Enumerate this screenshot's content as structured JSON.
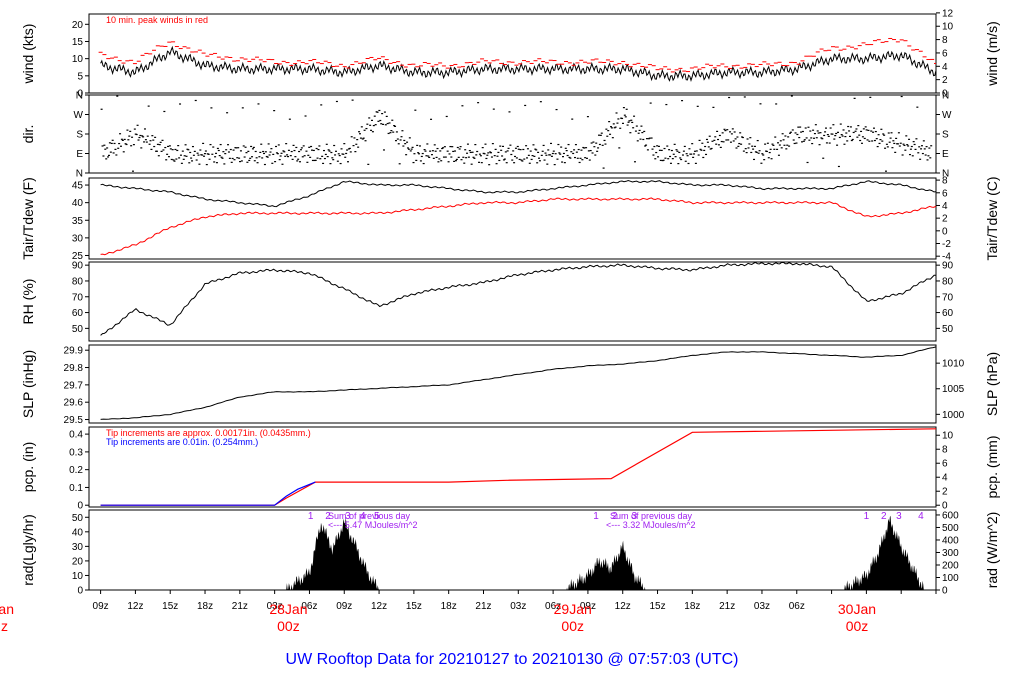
{
  "footer": {
    "title": "UW Rooftop Data for 20210127  to  20210130 @ 07:57:03  (UTC)"
  },
  "colors": {
    "wind": "#000000",
    "peak": "#ff0000",
    "tair": "#000000",
    "tdew": "#ff0000",
    "precip_fine": "#ff0000",
    "precip_coarse": "#0000ff",
    "annotation": "#a020f0",
    "date_label": "#ff0000",
    "footer": "#0000ff"
  },
  "chart_data": [
    {
      "type": "line",
      "name": "wind",
      "ylabel": "wind (kts)",
      "ylabel_right": "wind (m/s)",
      "ylim": [
        0,
        23
      ],
      "yticks": [
        0,
        5,
        10,
        15,
        20
      ],
      "right_ticks": [
        0,
        2,
        4,
        6,
        8,
        10,
        12
      ],
      "annotation": "10 min. peak winds in red",
      "x_hours": [
        0,
        3,
        6,
        9,
        12,
        15,
        18,
        21,
        24,
        27,
        30,
        33,
        36,
        39,
        42,
        45,
        48,
        51,
        54,
        57,
        60,
        63,
        66,
        69,
        72
      ],
      "series": [
        {
          "values": [
            8,
            6,
            12,
            8,
            7,
            7,
            7,
            6,
            8,
            6,
            6,
            7,
            7,
            7,
            7,
            7,
            5,
            5,
            6,
            6,
            7,
            10,
            10,
            11,
            6
          ]
        },
        {
          "values": [
            11,
            9,
            15,
            11,
            10,
            9,
            9,
            8,
            10,
            8,
            8,
            9,
            9,
            9,
            9,
            9,
            7,
            7,
            8,
            8,
            9,
            13,
            14,
            16,
            8
          ]
        }
      ]
    },
    {
      "type": "scatter",
      "name": "dir",
      "ylabel": "dir.",
      "yticks": [
        "N",
        "E",
        "S",
        "W",
        "N"
      ],
      "x_hours": [
        0,
        3,
        6,
        9,
        12,
        15,
        18,
        21,
        24,
        27,
        30,
        33,
        36,
        39,
        42,
        45,
        48,
        51,
        54,
        57,
        60,
        63,
        66,
        69,
        72
      ],
      "values": [
        "E",
        "S",
        "E",
        "E",
        "E",
        "E",
        "E",
        "E",
        "W",
        "E",
        "E",
        "E",
        "E",
        "E",
        "E",
        "W",
        "E",
        "E",
        "S",
        "E",
        "S",
        "S",
        "S",
        "SE",
        "E"
      ]
    },
    {
      "type": "line",
      "name": "temperature",
      "ylabel": "Tair/Tdew (F)",
      "ylabel_right": "Tair/Tdew (C)",
      "ylim": [
        24,
        47
      ],
      "yticks": [
        25,
        30,
        35,
        40,
        45
      ],
      "right_ticks": [
        -4,
        -2,
        0,
        2,
        4,
        6,
        8
      ],
      "x_hours": [
        0,
        3,
        6,
        9,
        12,
        15,
        18,
        21,
        24,
        27,
        30,
        33,
        36,
        39,
        42,
        45,
        48,
        51,
        54,
        57,
        60,
        63,
        66,
        69,
        72
      ],
      "series": [
        {
          "values": [
            45,
            44,
            43,
            41,
            40,
            39,
            42,
            46,
            45,
            45,
            44,
            43,
            43,
            44,
            45,
            46,
            46,
            45,
            45,
            44,
            44,
            44,
            46,
            45,
            43
          ]
        },
        {
          "values": [
            25,
            28,
            33,
            36,
            37,
            37,
            37,
            37,
            37,
            38,
            39,
            40,
            40,
            41,
            41,
            41,
            41,
            40,
            40,
            40,
            40,
            40,
            36,
            37,
            39
          ]
        }
      ]
    },
    {
      "type": "line",
      "name": "rh",
      "ylabel": "RH (%)",
      "ylim": [
        42,
        92
      ],
      "yticks": [
        50,
        60,
        70,
        80,
        90
      ],
      "x_hours": [
        0,
        3,
        6,
        9,
        12,
        15,
        18,
        21,
        24,
        27,
        30,
        33,
        36,
        39,
        42,
        45,
        48,
        51,
        54,
        57,
        60,
        63,
        66,
        69,
        72
      ],
      "values": [
        45,
        62,
        52,
        78,
        85,
        87,
        85,
        75,
        64,
        72,
        76,
        79,
        84,
        87,
        89,
        90,
        88,
        87,
        90,
        91,
        91,
        89,
        67,
        72,
        84
      ]
    },
    {
      "type": "line",
      "name": "slp",
      "ylabel": "SLP (inHg)",
      "ylabel_right": "SLP (hPa)",
      "ylim": [
        29.48,
        29.93
      ],
      "yticks": [
        29.5,
        29.6,
        29.7,
        29.8,
        29.9
      ],
      "right_ticks": [
        1000,
        1005,
        1010
      ],
      "x_hours": [
        0,
        3,
        6,
        9,
        12,
        15,
        18,
        21,
        24,
        27,
        30,
        33,
        36,
        39,
        42,
        45,
        48,
        51,
        54,
        57,
        60,
        63,
        66,
        69,
        72
      ],
      "values": [
        29.5,
        29.51,
        29.53,
        29.57,
        29.63,
        29.66,
        29.66,
        29.67,
        29.68,
        29.69,
        29.7,
        29.73,
        29.76,
        29.79,
        29.81,
        29.82,
        29.84,
        29.87,
        29.89,
        29.89,
        29.88,
        29.87,
        29.86,
        29.87,
        29.92
      ]
    },
    {
      "type": "line",
      "name": "precip",
      "ylabel": "pcp. (in)",
      "ylabel_right": "pcp. (mm)",
      "ylim": [
        -0.01,
        0.44
      ],
      "yticks": [
        0,
        0.1,
        0.2,
        0.3,
        0.4
      ],
      "right_ticks": [
        0,
        2,
        4,
        6,
        8,
        10
      ],
      "annotations": [
        "Tip increments are approx. 0.00171in. (0.0435mm.)",
        "Tip increments are 0.01in. (0.254mm.)"
      ],
      "series": [
        {
          "x": [
            0,
            15,
            16,
            18.5,
            20,
            30,
            35,
            44,
            51,
            72
          ],
          "values": [
            0,
            0,
            0.04,
            0.13,
            0.13,
            0.13,
            0.14,
            0.15,
            0.41,
            0.43
          ]
        },
        {
          "x": [
            0,
            15,
            16,
            17,
            18.5
          ],
          "values": [
            0,
            0,
            0.05,
            0.09,
            0.13
          ]
        }
      ]
    },
    {
      "type": "area",
      "name": "radiation",
      "ylabel": "rad(Lgly/hr)",
      "ylabel_right": "rad (W/m^2)",
      "ylim": [
        0,
        55
      ],
      "yticks": [
        0,
        10,
        20,
        30,
        40,
        50
      ],
      "right_ticks": [
        0,
        100,
        200,
        300,
        400,
        500,
        600
      ],
      "x_hours": [
        16,
        18,
        19,
        20,
        21,
        22,
        23,
        24,
        40,
        42,
        43,
        44,
        45,
        46,
        47,
        64,
        66,
        67,
        68,
        69,
        70,
        71
      ],
      "values": [
        0,
        12,
        46,
        28,
        47,
        30,
        12,
        0,
        0,
        10,
        20,
        15,
        30,
        10,
        0,
        0,
        10,
        25,
        48,
        30,
        15,
        0
      ],
      "markers": [
        [
          "1",
          "2",
          "3",
          "4",
          "5"
        ],
        [
          "1",
          "2",
          "3"
        ],
        [
          "1",
          "2",
          "3",
          "4"
        ]
      ],
      "daily_sums": [
        {
          "label": "Sum of previous day",
          "value": "<--- 5.47 MJoules/m^2"
        },
        {
          "label": "Sum of previous day",
          "value": "<--- 3.32 MJoules/m^2"
        }
      ]
    }
  ],
  "x_axis": {
    "tick_labels": [
      "09z",
      "12z",
      "15z",
      "18z",
      "21z",
      "03z",
      "06z",
      "09z",
      "12z",
      "15z",
      "18z",
      "21z",
      "03z",
      "06z",
      "09z",
      "12z",
      "15z",
      "18z",
      "21z",
      "03z",
      "06z"
    ],
    "dates": [
      {
        "day": "28Jan",
        "hour": "00z"
      },
      {
        "day": "29Jan",
        "hour": "00z"
      },
      {
        "day": "30Jan",
        "hour": "00z"
      }
    ],
    "edge_date": {
      "day": "Jan",
      "hour": "z"
    }
  }
}
